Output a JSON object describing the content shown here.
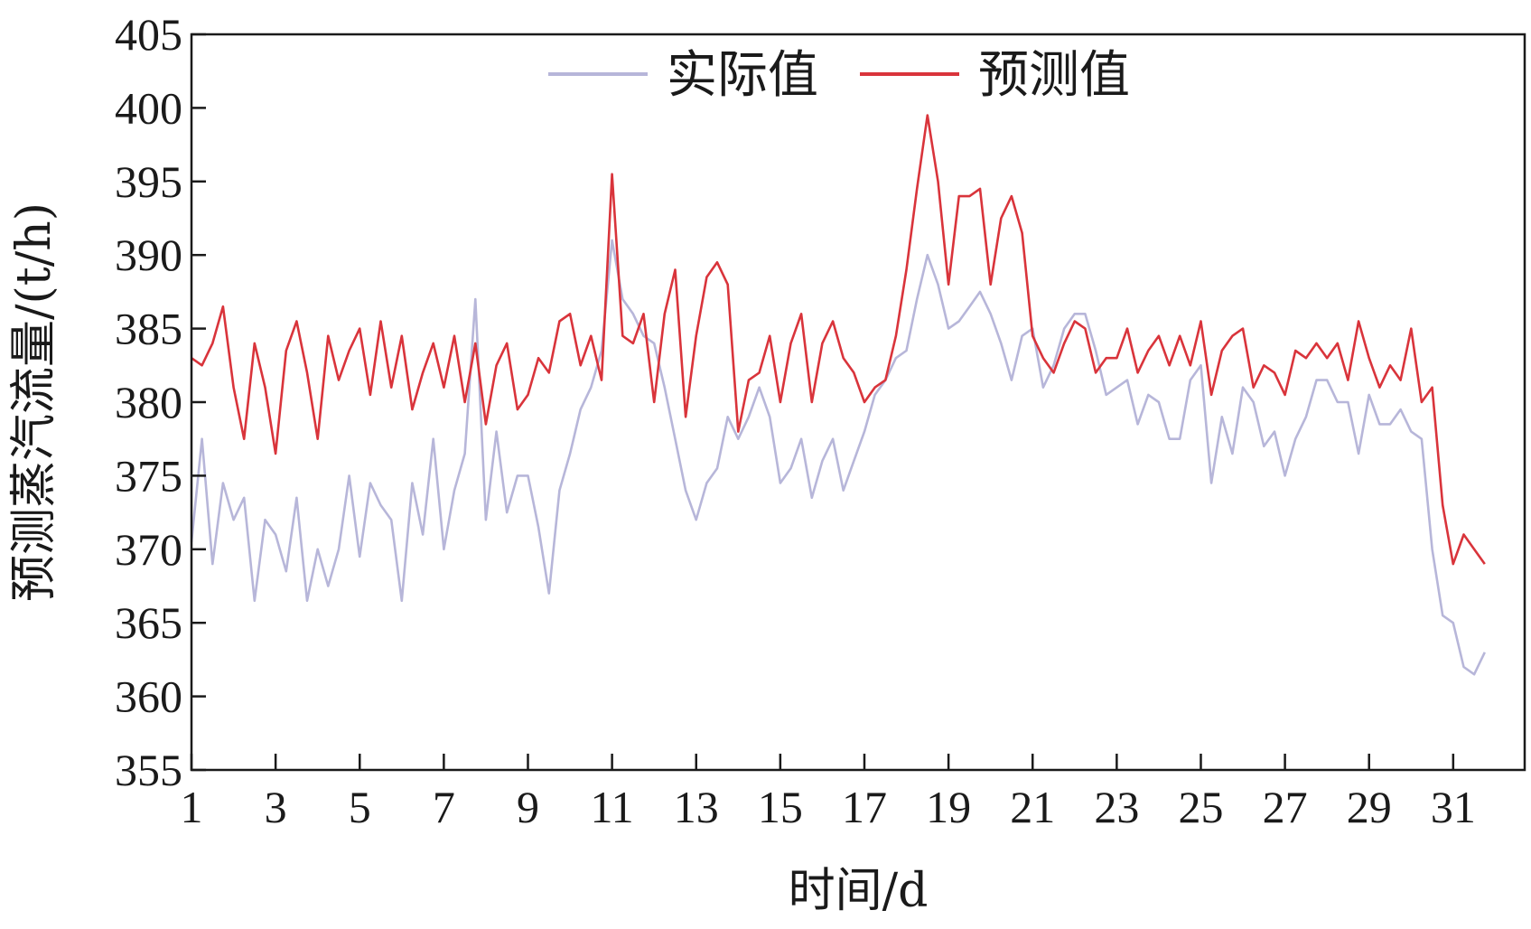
{
  "chart_data": {
    "type": "line",
    "title": "",
    "xlabel": "时间/d",
    "ylabel": "预测蒸汽流量/(t/h)",
    "xlim": [
      1,
      32.7
    ],
    "ylim": [
      355,
      405
    ],
    "x_ticks": [
      1,
      3,
      5,
      7,
      9,
      11,
      13,
      15,
      17,
      19,
      21,
      23,
      25,
      27,
      29,
      31
    ],
    "y_ticks": [
      355,
      360,
      365,
      370,
      375,
      380,
      385,
      390,
      395,
      400,
      405
    ],
    "grid": false,
    "legend": "top-center",
    "series": [
      {
        "name": "实际值",
        "color": "#b7b6d9",
        "x": [
          1.0,
          1.25,
          1.5,
          1.75,
          2.0,
          2.25,
          2.5,
          2.75,
          3.0,
          3.25,
          3.5,
          3.75,
          4.0,
          4.25,
          4.5,
          4.75,
          5.0,
          5.25,
          5.5,
          5.75,
          6.0,
          6.25,
          6.5,
          6.75,
          7.0,
          7.25,
          7.5,
          7.75,
          8.0,
          8.25,
          8.5,
          8.75,
          9.0,
          9.25,
          9.5,
          9.75,
          10.0,
          10.25,
          10.5,
          10.75,
          11.0,
          11.25,
          11.5,
          11.75,
          12.0,
          12.25,
          12.5,
          12.75,
          13.0,
          13.25,
          13.5,
          13.75,
          14.0,
          14.25,
          14.5,
          14.75,
          15.0,
          15.25,
          15.5,
          15.75,
          16.0,
          16.25,
          16.5,
          16.75,
          17.0,
          17.25,
          17.5,
          17.75,
          18.0,
          18.25,
          18.5,
          18.75,
          19.0,
          19.25,
          19.5,
          19.75,
          20.0,
          20.25,
          20.5,
          20.75,
          21.0,
          21.25,
          21.5,
          21.75,
          22.0,
          22.25,
          22.5,
          22.75,
          23.0,
          23.25,
          23.5,
          23.75,
          24.0,
          24.25,
          24.5,
          24.75,
          25.0,
          25.25,
          25.5,
          25.75,
          26.0,
          26.25,
          26.5,
          26.75,
          27.0,
          27.25,
          27.5,
          27.75,
          28.0,
          28.25,
          28.5,
          28.75,
          29.0,
          29.25,
          29.5,
          29.75,
          30.0,
          30.25,
          30.5,
          30.75,
          31.0,
          31.25,
          31.5,
          31.75
        ],
        "values": [
          370.5,
          377.5,
          369.0,
          374.5,
          372.0,
          373.5,
          366.5,
          372.0,
          371.0,
          368.5,
          373.5,
          366.5,
          370.0,
          367.5,
          370.0,
          375.0,
          369.5,
          374.5,
          373.0,
          372.0,
          366.5,
          374.5,
          371.0,
          377.5,
          370.0,
          374.0,
          376.5,
          387.0,
          372.0,
          378.0,
          372.5,
          375.0,
          375.0,
          371.5,
          367.0,
          374.0,
          376.5,
          379.5,
          381.0,
          383.5,
          391.0,
          387.0,
          386.0,
          384.5,
          384.0,
          381.0,
          377.5,
          374.0,
          372.0,
          374.5,
          375.5,
          379.0,
          377.5,
          379.0,
          381.0,
          379.0,
          374.5,
          375.5,
          377.5,
          373.5,
          376.0,
          377.5,
          374.0,
          376.0,
          378.0,
          380.5,
          381.5,
          383.0,
          383.5,
          387.0,
          390.0,
          388.0,
          385.0,
          385.5,
          386.5,
          387.5,
          386.0,
          384.0,
          381.5,
          384.5,
          385.0,
          381.0,
          382.5,
          385.0,
          386.0,
          386.0,
          383.5,
          380.5,
          381.0,
          381.5,
          378.5,
          380.5,
          380.0,
          377.5,
          377.5,
          381.5,
          382.5,
          374.5,
          379.0,
          376.5,
          381.0,
          380.0,
          377.0,
          378.0,
          375.0,
          377.5,
          379.0,
          381.5,
          381.5,
          380.0,
          380.0,
          376.5,
          380.5,
          378.5,
          378.5,
          379.5,
          378.0,
          377.5,
          370.0,
          365.5,
          365.0,
          362.0,
          361.5,
          363.0
        ]
      },
      {
        "name": "预测值",
        "color": "#d9343b",
        "x": [
          1.0,
          1.25,
          1.5,
          1.75,
          2.0,
          2.25,
          2.5,
          2.75,
          3.0,
          3.25,
          3.5,
          3.75,
          4.0,
          4.25,
          4.5,
          4.75,
          5.0,
          5.25,
          5.5,
          5.75,
          6.0,
          6.25,
          6.5,
          6.75,
          7.0,
          7.25,
          7.5,
          7.75,
          8.0,
          8.25,
          8.5,
          8.75,
          9.0,
          9.25,
          9.5,
          9.75,
          10.0,
          10.25,
          10.5,
          10.75,
          11.0,
          11.25,
          11.5,
          11.75,
          12.0,
          12.25,
          12.5,
          12.75,
          13.0,
          13.25,
          13.5,
          13.75,
          14.0,
          14.25,
          14.5,
          14.75,
          15.0,
          15.25,
          15.5,
          15.75,
          16.0,
          16.25,
          16.5,
          16.75,
          17.0,
          17.25,
          17.5,
          17.75,
          18.0,
          18.25,
          18.5,
          18.75,
          19.0,
          19.25,
          19.5,
          19.75,
          20.0,
          20.25,
          20.5,
          20.75,
          21.0,
          21.25,
          21.5,
          21.75,
          22.0,
          22.25,
          22.5,
          22.75,
          23.0,
          23.25,
          23.5,
          23.75,
          24.0,
          24.25,
          24.5,
          24.75,
          25.0,
          25.25,
          25.5,
          25.75,
          26.0,
          26.25,
          26.5,
          26.75,
          27.0,
          27.25,
          27.5,
          27.75,
          28.0,
          28.25,
          28.5,
          28.75,
          29.0,
          29.25,
          29.5,
          29.75,
          30.0,
          30.25,
          30.5,
          30.75,
          31.0,
          31.25,
          31.5,
          31.75
        ],
        "values": [
          383.0,
          382.5,
          384.0,
          386.5,
          381.0,
          377.5,
          384.0,
          381.0,
          376.5,
          383.5,
          385.5,
          382.0,
          377.5,
          384.5,
          381.5,
          383.5,
          385.0,
          380.5,
          385.5,
          381.0,
          384.5,
          379.5,
          382.0,
          384.0,
          381.0,
          384.5,
          380.0,
          384.0,
          378.5,
          382.5,
          384.0,
          379.5,
          380.5,
          383.0,
          382.0,
          385.5,
          386.0,
          382.5,
          384.5,
          381.5,
          395.5,
          384.5,
          384.0,
          386.0,
          380.0,
          386.0,
          389.0,
          379.0,
          384.5,
          388.5,
          389.5,
          388.0,
          378.0,
          381.5,
          382.0,
          384.5,
          380.0,
          384.0,
          386.0,
          380.0,
          384.0,
          385.5,
          383.0,
          382.0,
          380.0,
          381.0,
          381.5,
          384.5,
          389.0,
          394.5,
          399.5,
          395.0,
          388.0,
          394.0,
          394.0,
          394.5,
          388.0,
          392.5,
          394.0,
          391.5,
          384.5,
          383.0,
          382.0,
          384.0,
          385.5,
          385.0,
          382.0,
          383.0,
          383.0,
          385.0,
          382.0,
          383.5,
          384.5,
          382.5,
          384.5,
          382.5,
          385.5,
          380.5,
          383.5,
          384.5,
          385.0,
          381.0,
          382.5,
          382.0,
          380.5,
          383.5,
          383.0,
          384.0,
          383.0,
          384.0,
          381.5,
          385.5,
          383.0,
          381.0,
          382.5,
          381.5,
          385.0,
          380.0,
          381.0,
          373.0,
          369.0,
          371.0,
          370.0,
          369.0
        ]
      }
    ]
  }
}
